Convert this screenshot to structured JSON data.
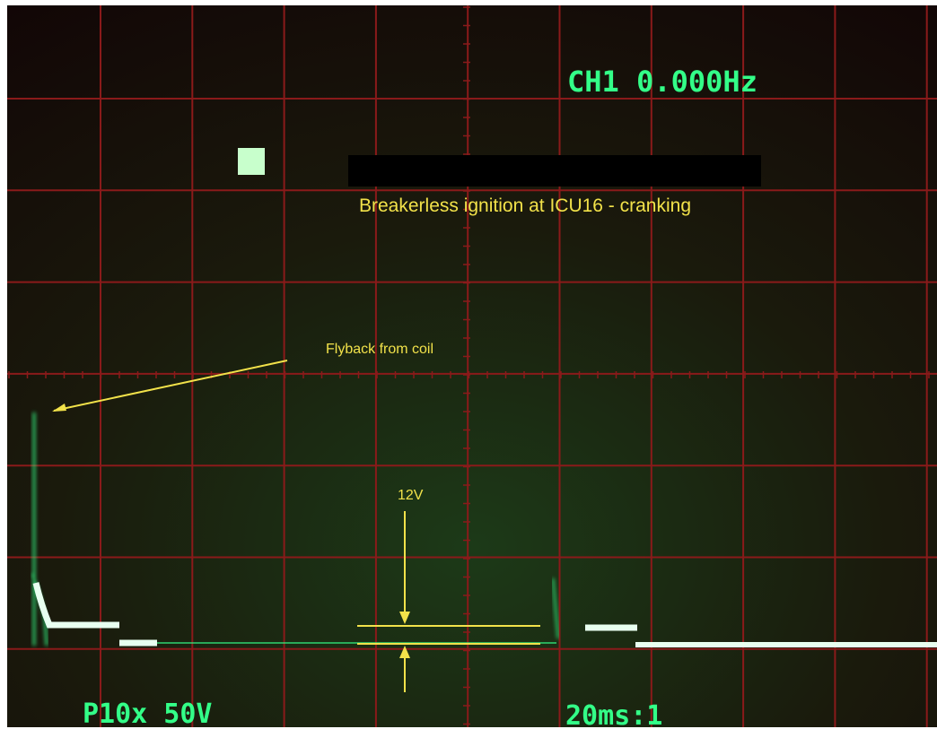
{
  "header": {
    "readout": "CH1 0.000Hz"
  },
  "annotations": {
    "title": "Breakerless ignition at ICU16 - cranking",
    "flyback": "Flyback from coil",
    "level": "12V"
  },
  "footer": {
    "probe": "P10x 50V",
    "timebase": "20ms:1"
  }
}
